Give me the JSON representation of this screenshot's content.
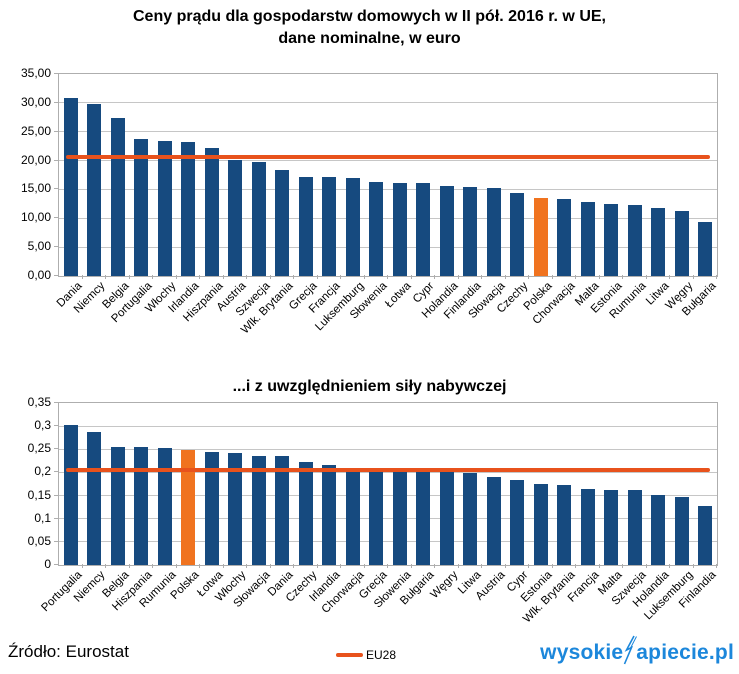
{
  "header": {
    "title_line1": "Ceny prądu dla gospodarstw domowych w II pół. 2016 r. w UE,",
    "title_line2": "dane nominalne, w euro"
  },
  "chart2_header": {
    "title": "...i z uwzględnieniem siły nabywczej"
  },
  "footer": {
    "source": "Źródło: Eurostat",
    "legend_label": "EU28",
    "logo_prefix": "wysokie",
    "logo_suffix": "apiecie.pl"
  },
  "colors": {
    "bar": "#164A7F",
    "highlight": "#F0731F",
    "reference_line": "#E8521C",
    "grid": "#C6C6C6",
    "axis": "#AEAEAE",
    "logo_blue": "#1C87DB"
  },
  "chart_data": [
    {
      "type": "bar",
      "title": "Ceny prądu dla gospodarstw domowych w II pół. 2016 r. w UE, dane nominalne, w euro",
      "categories": [
        "Dania",
        "Niemcy",
        "Belgia",
        "Portugalia",
        "Włochy",
        "Irlandia",
        "Hiszpania",
        "Austria",
        "Szwecja",
        "Wlk. Brytania",
        "Grecja",
        "Francja",
        "Luksemburg",
        "Słowenia",
        "Łotwa",
        "Cypr",
        "Holandia",
        "Finlandia",
        "Słowacja",
        "Czechy",
        "Polska",
        "Chorwacja",
        "Malta",
        "Estonia",
        "Rumunia",
        "Litwa",
        "Węgry",
        "Bułgaria"
      ],
      "values": [
        30.8,
        29.8,
        27.4,
        23.7,
        23.4,
        23.3,
        22.1,
        20.1,
        19.7,
        18.3,
        17.2,
        17.1,
        16.9,
        16.3,
        16.2,
        16.2,
        15.6,
        15.4,
        15.3,
        14.4,
        13.5,
        13.3,
        12.8,
        12.4,
        12.3,
        11.7,
        11.3,
        9.4
      ],
      "highlight_category": "Polska",
      "reference_line": {
        "label": "EU28",
        "value": 20.6
      },
      "ylim": [
        0,
        35
      ],
      "ytick_step": 5,
      "ytick_labels": [
        "35,00",
        "30,00",
        "25,00",
        "20,00",
        "15,00",
        "10,00",
        "5,00",
        "0,00"
      ],
      "grid": true,
      "legend_position": "bottom"
    },
    {
      "type": "bar",
      "title": "...i z uwzględnieniem siły nabywczej",
      "categories": [
        "Portugalia",
        "Niemcy",
        "Belgia",
        "Hiszpania",
        "Rumunia",
        "Polska",
        "Łotwa",
        "Włochy",
        "Słowacja",
        "Dania",
        "Czechy",
        "Irlandia",
        "Chorwacja",
        "Grecja",
        "Słowenia",
        "Bułgaria",
        "Węgry",
        "Litwa",
        "Austria",
        "Cypr",
        "Estonia",
        "Wlk. Brytania",
        "Francja",
        "Malta",
        "Szwecja",
        "Holandia",
        "Luksemburg",
        "Finlandia"
      ],
      "values": [
        0.303,
        0.288,
        0.256,
        0.254,
        0.253,
        0.249,
        0.245,
        0.241,
        0.236,
        0.235,
        0.223,
        0.216,
        0.209,
        0.205,
        0.204,
        0.203,
        0.2,
        0.198,
        0.19,
        0.183,
        0.175,
        0.172,
        0.164,
        0.162,
        0.162,
        0.151,
        0.146,
        0.128
      ],
      "highlight_category": "Polska",
      "reference_line": {
        "label": "EU28",
        "value": 0.205
      },
      "ylim": [
        0,
        0.35
      ],
      "ytick_step": 0.05,
      "ytick_labels": [
        "0,35",
        "0,3",
        "0,25",
        "0,2",
        "0,15",
        "0,1",
        "0,05",
        "0"
      ],
      "grid": true,
      "legend_position": "bottom"
    }
  ]
}
